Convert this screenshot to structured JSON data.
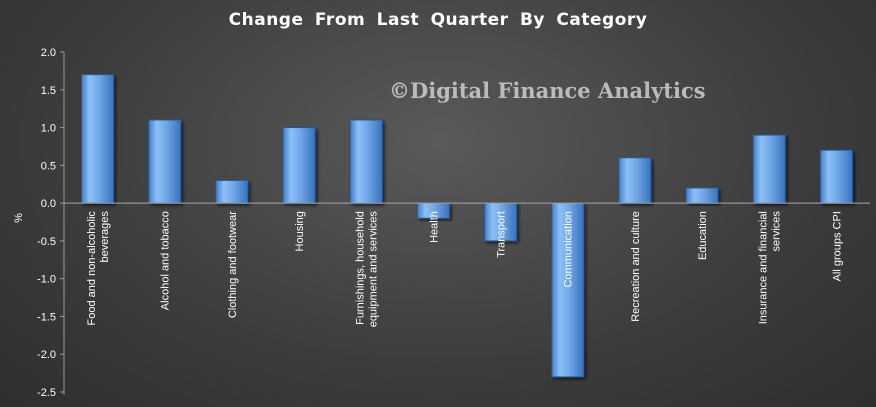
{
  "chart_data": {
    "type": "bar",
    "title": "Change From Last Quarter  By Category",
    "ylabel": "%",
    "watermark": "©Digital Finance Analytics",
    "ylim": [
      -2.5,
      2.0
    ],
    "yticks": [
      "2.0",
      "1.5",
      "1.0",
      "0.5",
      "0.0",
      "-0.5",
      "-1.0",
      "-1.5",
      "-2.0",
      "-2.5"
    ],
    "grid": false,
    "bar_color": "#6fa8e8",
    "categories": [
      [
        "Food and non-alcoholic",
        "beverages"
      ],
      [
        "Alcohol and tobacco"
      ],
      [
        "Clothing and footwear"
      ],
      [
        "Housing"
      ],
      [
        "Furnishings, household",
        "equipment and services"
      ],
      [
        "Health"
      ],
      [
        "Transport"
      ],
      [
        "Communication"
      ],
      [
        "Recreation and culture"
      ],
      [
        "Education"
      ],
      [
        "Insurance and financial",
        "services"
      ],
      [
        "All groups CPI"
      ]
    ],
    "values": [
      1.7,
      1.1,
      0.3,
      1.0,
      1.1,
      -0.2,
      -0.5,
      -2.3,
      0.6,
      0.2,
      0.9,
      0.7
    ]
  }
}
